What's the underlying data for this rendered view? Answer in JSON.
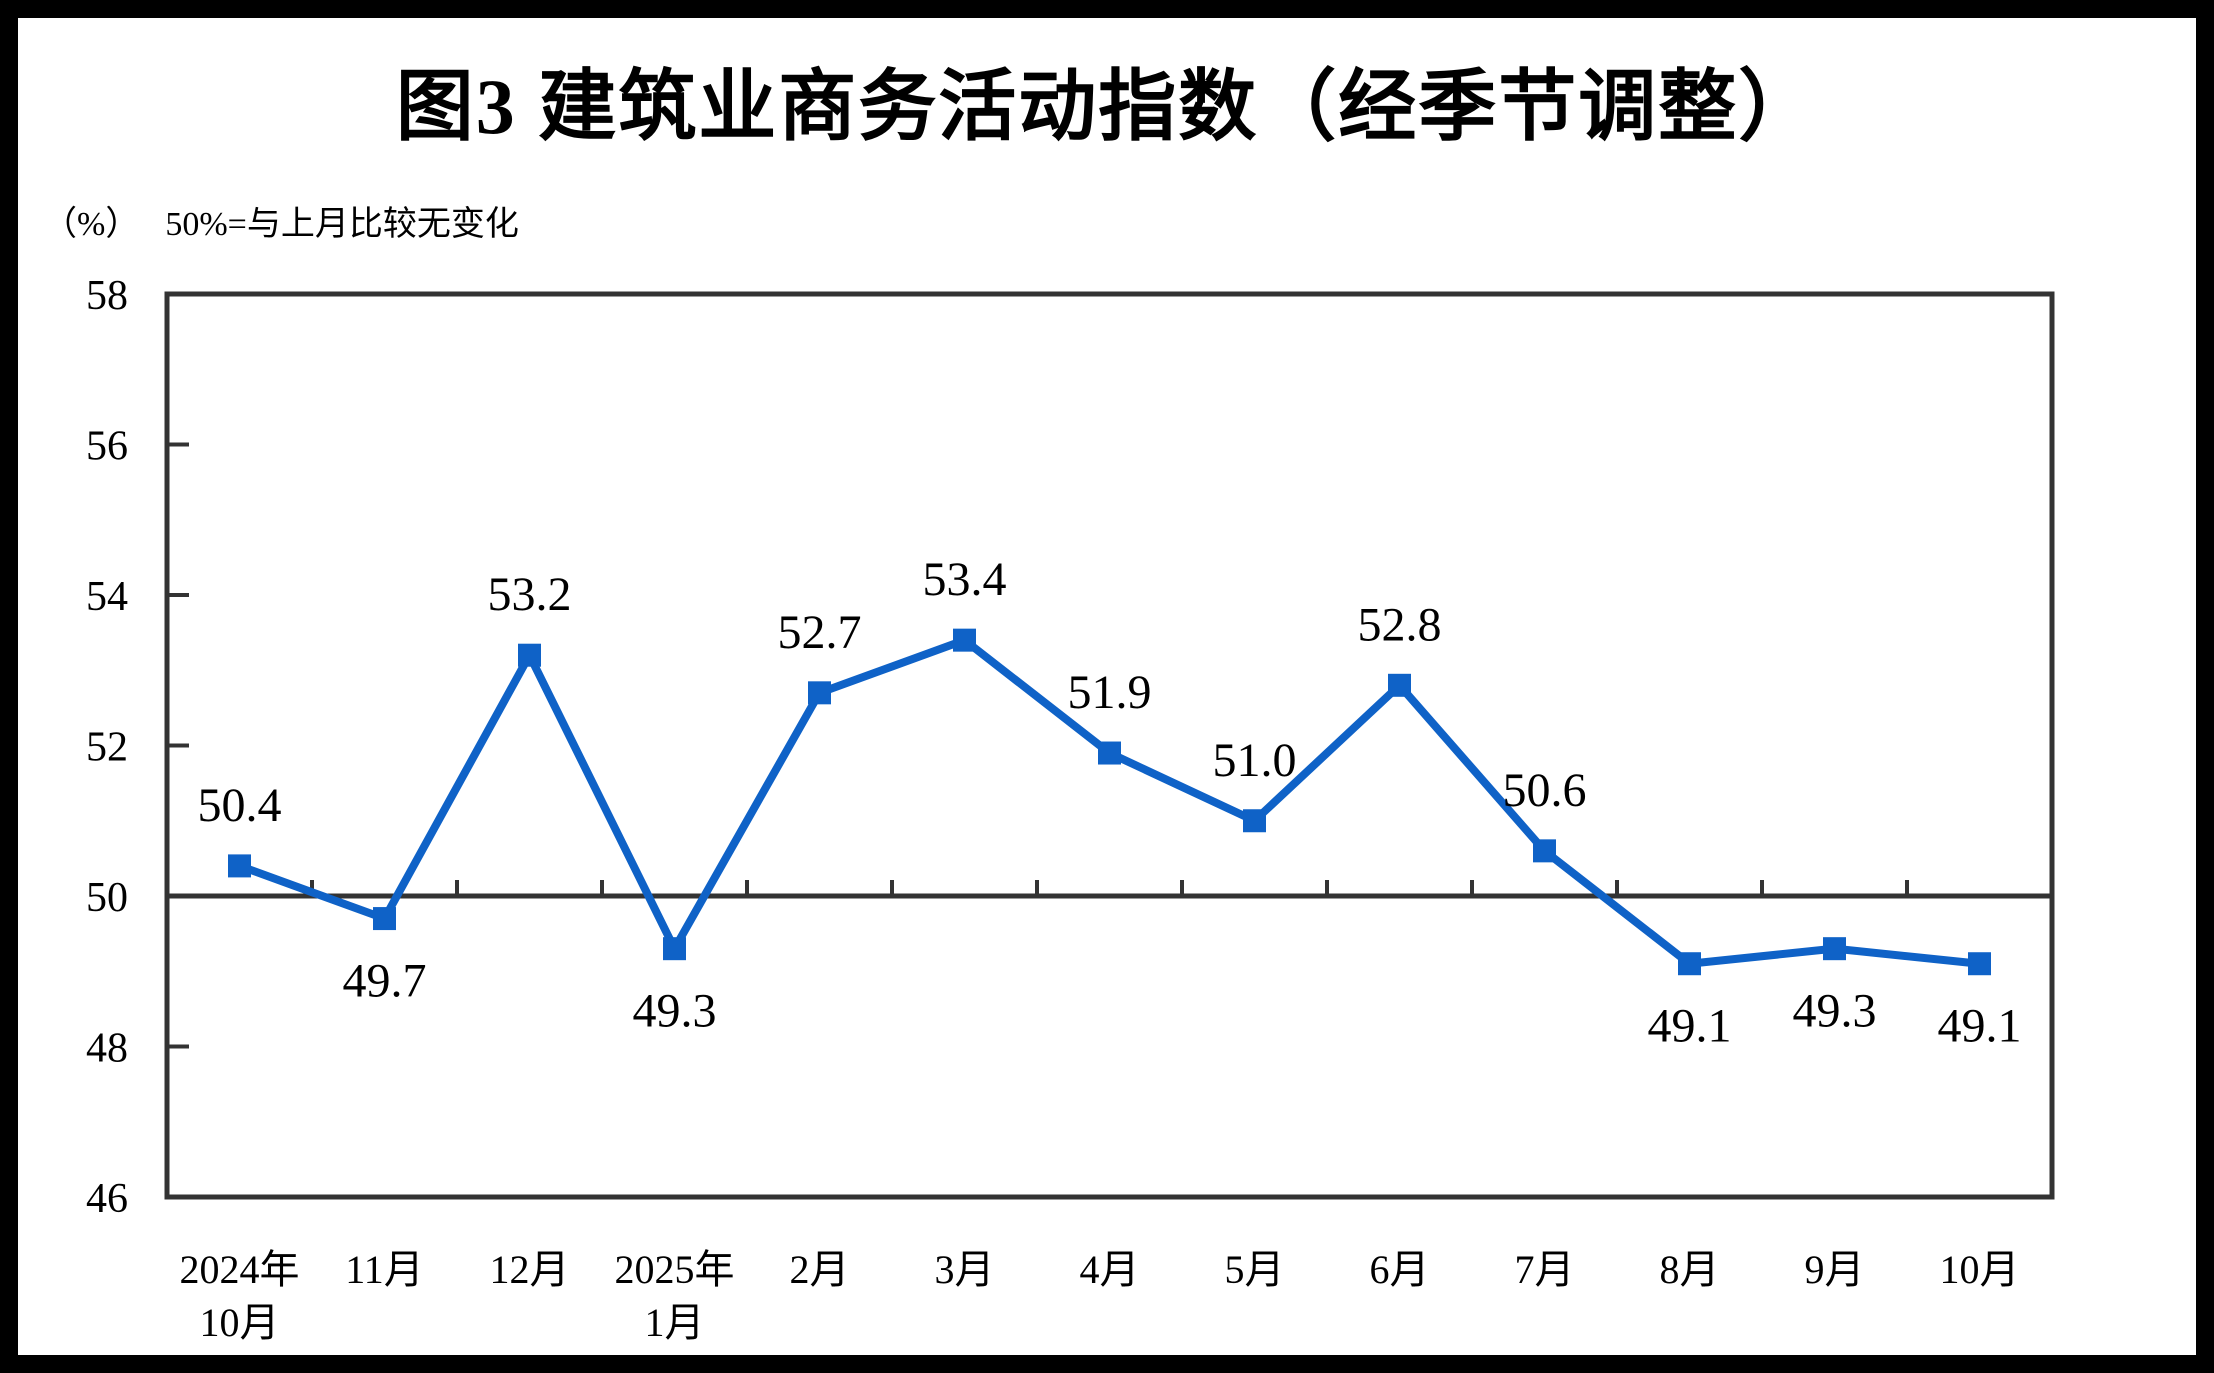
{
  "chart_data": {
    "type": "line",
    "title": "图3  建筑业商务活动指数（经季节调整）",
    "y_unit": "（%）",
    "note": "50%=与上月比较无变化",
    "categories": [
      [
        "2024年",
        "10月"
      ],
      [
        "11月"
      ],
      [
        "12月"
      ],
      [
        "2025年",
        "1月"
      ],
      [
        "2月"
      ],
      [
        "3月"
      ],
      [
        "4月"
      ],
      [
        "5月"
      ],
      [
        "6月"
      ],
      [
        "7月"
      ],
      [
        "8月"
      ],
      [
        "9月"
      ],
      [
        "10月"
      ]
    ],
    "values": [
      50.4,
      49.7,
      53.2,
      49.3,
      52.7,
      53.4,
      51.9,
      51.0,
      52.8,
      50.6,
      49.1,
      49.3,
      49.1
    ],
    "data_labels": [
      "50.4",
      "49.7",
      "53.2",
      "49.3",
      "52.7",
      "53.4",
      "51.9",
      "51.0",
      "52.8",
      "50.6",
      "49.1",
      "49.3",
      "49.1"
    ],
    "ylim": [
      46,
      58
    ],
    "yticks": [
      58,
      56,
      54,
      52,
      50,
      48,
      46
    ],
    "reference_line": 50,
    "series_color": "#0F62C7",
    "axis_color": "#333333",
    "grid": false,
    "legend": false
  }
}
